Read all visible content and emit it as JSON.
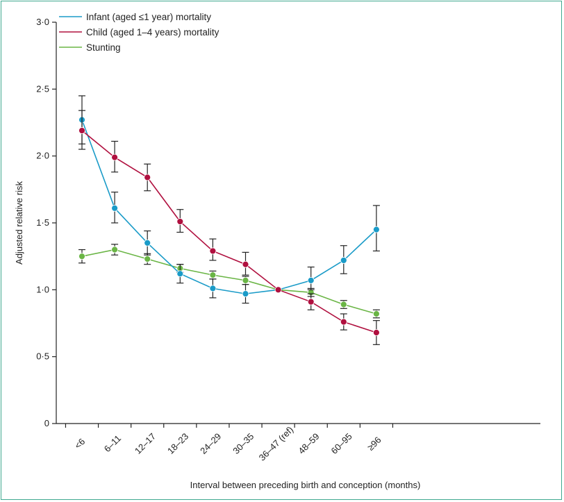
{
  "chart_data": {
    "type": "line",
    "title": "",
    "xlabel": "Interval between preceding birth and conception (months)",
    "ylabel": "Adjusted relative risk",
    "categories": [
      "<6",
      "6–11",
      "12–17",
      "18–23",
      "24–29",
      "30–35",
      "36–47 (ref)",
      "48–59",
      "60–95",
      "≥96"
    ],
    "ylim": [
      0,
      3.0
    ],
    "yticks": [
      0,
      0.5,
      1.0,
      1.5,
      2.0,
      2.5,
      3.0
    ],
    "ytick_labels": [
      "0",
      "0·5",
      "1·0",
      "1·5",
      "2·0",
      "2·5",
      "3·0"
    ],
    "grid": false,
    "legend_position": "top-left",
    "series": [
      {
        "name": "Infant (aged ≤1 year) mortality",
        "color": "#1a9bc8",
        "values": [
          2.27,
          1.61,
          1.35,
          1.12,
          1.01,
          0.97,
          1.0,
          1.07,
          1.22,
          1.45
        ],
        "err_low": [
          2.09,
          1.5,
          1.26,
          1.05,
          0.94,
          0.9,
          1.0,
          1.0,
          1.12,
          1.29
        ],
        "err_high": [
          2.45,
          1.73,
          1.44,
          1.19,
          1.08,
          1.04,
          1.0,
          1.17,
          1.33,
          1.63
        ]
      },
      {
        "name": "Child (aged 1–4 years) mortality",
        "color": "#b0103f",
        "values": [
          2.19,
          1.99,
          1.84,
          1.51,
          1.29,
          1.19,
          1.0,
          0.91,
          0.76,
          0.68
        ],
        "err_low": [
          2.05,
          1.88,
          1.74,
          1.43,
          1.22,
          1.11,
          1.0,
          0.85,
          0.7,
          0.59
        ],
        "err_high": [
          2.34,
          2.11,
          1.94,
          1.6,
          1.38,
          1.28,
          1.0,
          0.97,
          0.82,
          0.77
        ]
      },
      {
        "name": "Stunting",
        "color": "#6ab545",
        "values": [
          1.25,
          1.3,
          1.23,
          1.16,
          1.11,
          1.07,
          1.0,
          0.98,
          0.89,
          0.82
        ],
        "err_low": [
          1.2,
          1.26,
          1.19,
          1.13,
          1.08,
          1.04,
          1.0,
          0.95,
          0.86,
          0.79
        ],
        "err_high": [
          1.3,
          1.34,
          1.27,
          1.19,
          1.14,
          1.1,
          1.0,
          1.01,
          0.92,
          0.85
        ]
      }
    ]
  }
}
